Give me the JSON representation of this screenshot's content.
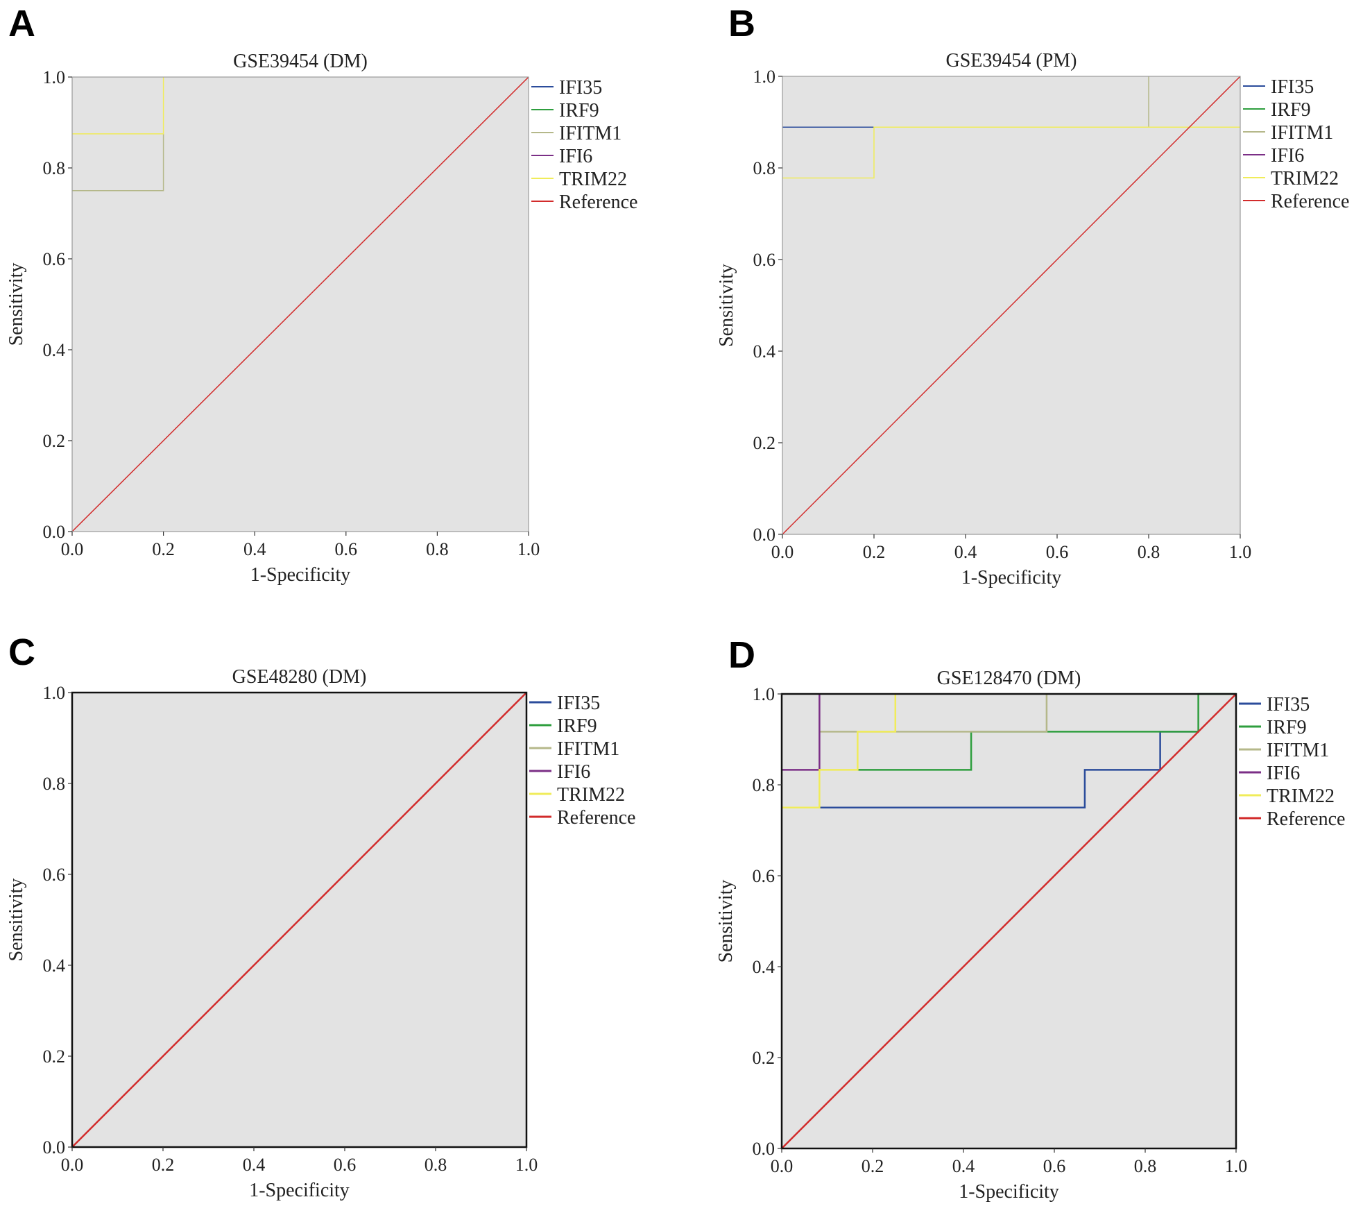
{
  "chart_data": [
    {
      "panel_label": "A",
      "type": "line",
      "title": "GSE39454 (DM)",
      "xlabel": "1-Specificity",
      "ylabel": "Sensitivity",
      "xlim": [
        0,
        1
      ],
      "ylim": [
        0,
        1
      ],
      "x_ticks": [
        "0.0",
        "0.2",
        "0.4",
        "0.6",
        "0.8",
        "1.0"
      ],
      "y_ticks": [
        "0.0",
        "0.2",
        "0.4",
        "0.6",
        "0.8",
        "1.0"
      ],
      "legend_position": "right",
      "grid": false,
      "series": [
        {
          "name": "IFI35",
          "color": "#2b4c9b",
          "stroke": 1.5,
          "points": []
        },
        {
          "name": "IRF9",
          "color": "#2e9e3e",
          "stroke": 1.5,
          "points": []
        },
        {
          "name": "IFITM1",
          "color": "#b5b88a",
          "stroke": 1.5,
          "points": [
            [
              0,
              0.75
            ],
            [
              0.2,
              0.75
            ],
            [
              0.2,
              0.875
            ]
          ]
        },
        {
          "name": "IFI6",
          "color": "#7b2f86",
          "stroke": 1.5,
          "points": []
        },
        {
          "name": "TRIM22",
          "color": "#f0ec5a",
          "stroke": 1.5,
          "points": [
            [
              0,
              0.875
            ],
            [
              0.2,
              0.875
            ],
            [
              0.2,
              1.0
            ]
          ]
        },
        {
          "name": "Reference",
          "color": "#d22b2b",
          "stroke": 1.5,
          "points": [
            [
              0,
              0
            ],
            [
              1,
              1
            ]
          ]
        }
      ]
    },
    {
      "panel_label": "B",
      "type": "line",
      "title": "GSE39454 (PM)",
      "xlabel": "1-Specificity",
      "ylabel": "Sensitivity",
      "xlim": [
        0,
        1
      ],
      "ylim": [
        0,
        1
      ],
      "x_ticks": [
        "0.0",
        "0.2",
        "0.4",
        "0.6",
        "0.8",
        "1.0"
      ],
      "y_ticks": [
        "0.0",
        "0.2",
        "0.4",
        "0.6",
        "0.8",
        "1.0"
      ],
      "legend_position": "right",
      "grid": false,
      "series": [
        {
          "name": "IFI35",
          "color": "#2b4c9b",
          "stroke": 1.5,
          "points": [
            [
              0,
              0.889
            ],
            [
              0.2,
              0.889
            ]
          ]
        },
        {
          "name": "IRF9",
          "color": "#2e9e3e",
          "stroke": 1.5,
          "points": []
        },
        {
          "name": "IFITM1",
          "color": "#b5b88a",
          "stroke": 1.5,
          "points": [
            [
              0.8,
              0.889
            ],
            [
              0.8,
              1.0
            ]
          ]
        },
        {
          "name": "IFI6",
          "color": "#7b2f86",
          "stroke": 1.5,
          "points": []
        },
        {
          "name": "TRIM22",
          "color": "#f0ec5a",
          "stroke": 1.5,
          "points": [
            [
              0,
              0.778
            ],
            [
              0.2,
              0.778
            ],
            [
              0.2,
              0.889
            ],
            [
              1.0,
              0.889
            ]
          ]
        },
        {
          "name": "Reference",
          "color": "#d22b2b",
          "stroke": 1.5,
          "points": [
            [
              0,
              0
            ],
            [
              1,
              1
            ]
          ]
        }
      ]
    },
    {
      "panel_label": "C",
      "type": "line",
      "title": "GSE48280 (DM)",
      "xlabel": "1-Specificity",
      "ylabel": "Sensitivity",
      "xlim": [
        0,
        1
      ],
      "ylim": [
        0,
        1
      ],
      "x_ticks": [
        "0.0",
        "0.2",
        "0.4",
        "0.6",
        "0.8",
        "1.0"
      ],
      "y_ticks": [
        "0.0",
        "0.2",
        "0.4",
        "0.6",
        "0.8",
        "1.0"
      ],
      "legend_position": "right",
      "grid": false,
      "series": [
        {
          "name": "IFI35",
          "color": "#2b4c9b",
          "stroke": 2.5,
          "points": []
        },
        {
          "name": "IRF9",
          "color": "#2e9e3e",
          "stroke": 2.5,
          "points": []
        },
        {
          "name": "IFITM1",
          "color": "#b5b88a",
          "stroke": 2.5,
          "points": []
        },
        {
          "name": "IFI6",
          "color": "#7b2f86",
          "stroke": 2.5,
          "points": []
        },
        {
          "name": "TRIM22",
          "color": "#f0ec5a",
          "stroke": 2.5,
          "points": []
        },
        {
          "name": "Reference",
          "color": "#d22b2b",
          "stroke": 2.5,
          "points": [
            [
              0,
              0
            ],
            [
              1,
              1
            ]
          ]
        }
      ]
    },
    {
      "panel_label": "D",
      "type": "line",
      "title": "GSE128470 (DM)",
      "xlabel": "1-Specificity",
      "ylabel": "Sensitivity",
      "xlim": [
        0,
        1
      ],
      "ylim": [
        0,
        1
      ],
      "x_ticks": [
        "0.0",
        "0.2",
        "0.4",
        "0.6",
        "0.8",
        "1.0"
      ],
      "y_ticks": [
        "0.0",
        "0.2",
        "0.4",
        "0.6",
        "0.8",
        "1.0"
      ],
      "legend_position": "right",
      "grid": false,
      "series": [
        {
          "name": "IFI35",
          "color": "#2b4c9b",
          "stroke": 2.5,
          "points": [
            [
              0.083,
              0.75
            ],
            [
              0.667,
              0.75
            ],
            [
              0.667,
              0.833
            ],
            [
              0.833,
              0.833
            ],
            [
              0.833,
              0.917
            ],
            [
              0.917,
              0.917
            ]
          ]
        },
        {
          "name": "IRF9",
          "color": "#2e9e3e",
          "stroke": 2.5,
          "points": [
            [
              0.167,
              0.833
            ],
            [
              0.417,
              0.833
            ],
            [
              0.417,
              0.917
            ],
            [
              0.917,
              0.917
            ],
            [
              0.917,
              1.0
            ],
            [
              1.0,
              1.0
            ]
          ]
        },
        {
          "name": "IFITM1",
          "color": "#b5b88a",
          "stroke": 2.5,
          "points": [
            [
              0.083,
              0.917
            ],
            [
              0.583,
              0.917
            ],
            [
              0.583,
              1.0
            ]
          ]
        },
        {
          "name": "IFI6",
          "color": "#7b2f86",
          "stroke": 2.5,
          "points": [
            [
              0,
              0.833
            ],
            [
              0.083,
              0.833
            ],
            [
              0.083,
              1.0
            ]
          ]
        },
        {
          "name": "TRIM22",
          "color": "#f0ec5a",
          "stroke": 2.5,
          "points": [
            [
              0,
              0.75
            ],
            [
              0.083,
              0.75
            ],
            [
              0.083,
              0.833
            ],
            [
              0.167,
              0.833
            ],
            [
              0.167,
              0.917
            ],
            [
              0.25,
              0.917
            ],
            [
              0.25,
              1.0
            ]
          ]
        },
        {
          "name": "Reference",
          "color": "#d22b2b",
          "stroke": 2.5,
          "points": [
            [
              0,
              0
            ],
            [
              1,
              1
            ]
          ]
        }
      ]
    }
  ]
}
